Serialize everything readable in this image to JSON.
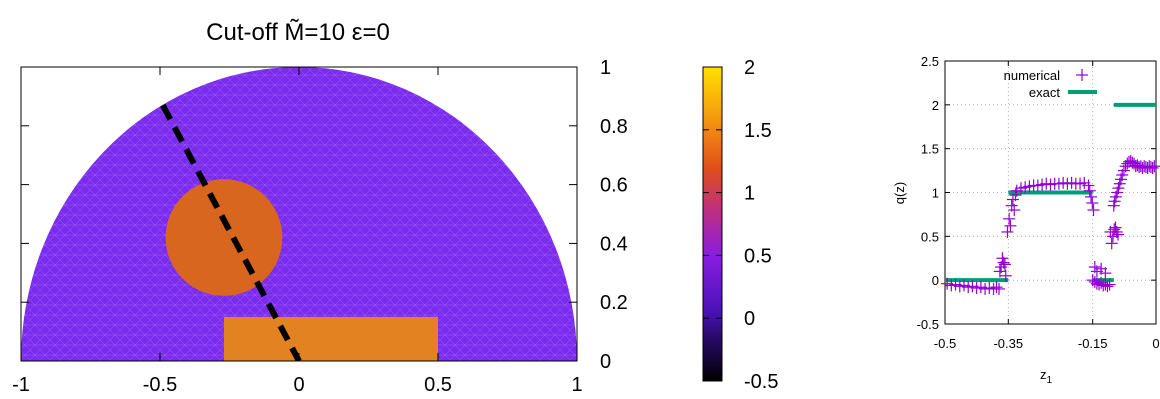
{
  "chart_data": [
    {
      "type": "heatmap",
      "title": "Cut-off M̃=10 ε=0",
      "xlim": [
        -1,
        1
      ],
      "ylim": [
        0,
        1
      ],
      "x_ticks": [
        "-1",
        "-0.5",
        "0",
        "0.5",
        "1"
      ],
      "y_ticks": [
        "0",
        "0.2",
        "0.4",
        "0.6",
        "0.8",
        "1"
      ],
      "colorbar": {
        "range": [
          -0.5,
          2
        ],
        "ticks": [
          "-0.5",
          "0",
          "0.5",
          "1",
          "1.5",
          "2"
        ],
        "colors": [
          "#000000",
          "#3a0a8c",
          "#8a1de0",
          "#c0307a",
          "#e0501a",
          "#f59a10",
          "#ffe000"
        ]
      },
      "regions": [
        {
          "shape": "half-disc",
          "center": [
            0,
            0
          ],
          "radius": 1,
          "value": 0.1,
          "color": "#7a2bee"
        },
        {
          "shape": "disc",
          "center": [
            -0.27,
            0.42
          ],
          "radius": 0.21,
          "value": 1.3,
          "color": "#d8661e"
        },
        {
          "shape": "rect",
          "x": [
            -0.27,
            0.5
          ],
          "y": [
            0,
            0.15
          ],
          "value": 1.4,
          "color": "#e28220"
        }
      ],
      "cut_line": {
        "from": [
          -0.49,
          0.87
        ],
        "to": [
          0,
          0
        ],
        "style": "dashed",
        "color": "#000000"
      }
    },
    {
      "type": "scatter",
      "xlabel": "z",
      "xlabel_sub": "1",
      "ylabel": "q(z)",
      "xlim": [
        -0.5,
        0
      ],
      "ylim": [
        -0.5,
        2.5
      ],
      "x_ticks": [
        "-0.5",
        "-0.35",
        "-0.15",
        "0"
      ],
      "x_tick_values": [
        -0.5,
        -0.35,
        -0.15,
        0
      ],
      "y_ticks": [
        "-0.5",
        "0",
        "0.5",
        "1",
        "1.5",
        "2",
        "2.5"
      ],
      "y_tick_values": [
        -0.5,
        0,
        0.5,
        1,
        1.5,
        2,
        2.5
      ],
      "legend": {
        "position": "top-left",
        "entries": [
          "numerical",
          "exact"
        ]
      },
      "series": [
        {
          "name": "numerical",
          "marker": "plus",
          "color": "#9400d3",
          "points": [
            [
              -0.495,
              -0.04
            ],
            [
              -0.485,
              -0.06
            ],
            [
              -0.475,
              -0.05
            ],
            [
              -0.465,
              -0.07
            ],
            [
              -0.455,
              -0.06
            ],
            [
              -0.445,
              -0.08
            ],
            [
              -0.435,
              -0.07
            ],
            [
              -0.425,
              -0.09
            ],
            [
              -0.415,
              -0.08
            ],
            [
              -0.405,
              -0.1
            ],
            [
              -0.395,
              -0.09
            ],
            [
              -0.385,
              -0.1
            ],
            [
              -0.378,
              -0.08
            ],
            [
              -0.372,
              -0.1
            ],
            [
              -0.37,
              0.1
            ],
            [
              -0.367,
              0.15
            ],
            [
              -0.364,
              0.25
            ],
            [
              -0.361,
              0.2
            ],
            [
              -0.358,
              0.18
            ],
            [
              -0.356,
              0.05
            ],
            [
              -0.352,
              0.55
            ],
            [
              -0.348,
              0.7
            ],
            [
              -0.345,
              0.62
            ],
            [
              -0.342,
              0.85
            ],
            [
              -0.339,
              0.92
            ],
            [
              -0.336,
              0.8
            ],
            [
              -0.333,
              0.97
            ],
            [
              -0.33,
              1.02
            ],
            [
              -0.32,
              1.05
            ],
            [
              -0.31,
              1.06
            ],
            [
              -0.3,
              1.07
            ],
            [
              -0.29,
              1.08
            ],
            [
              -0.28,
              1.08
            ],
            [
              -0.27,
              1.09
            ],
            [
              -0.26,
              1.1
            ],
            [
              -0.25,
              1.09
            ],
            [
              -0.24,
              1.1
            ],
            [
              -0.23,
              1.1
            ],
            [
              -0.22,
              1.11
            ],
            [
              -0.21,
              1.1
            ],
            [
              -0.2,
              1.11
            ],
            [
              -0.19,
              1.1
            ],
            [
              -0.18,
              1.1
            ],
            [
              -0.17,
              1.11
            ],
            [
              -0.16,
              1.08
            ],
            [
              -0.157,
              1.02
            ],
            [
              -0.154,
              0.95
            ],
            [
              -0.151,
              0.88
            ],
            [
              -0.148,
              0.8
            ],
            [
              -0.15,
              0.0
            ],
            [
              -0.145,
              -0.02
            ],
            [
              -0.14,
              -0.04
            ],
            [
              -0.135,
              -0.05
            ],
            [
              -0.13,
              -0.03
            ],
            [
              -0.125,
              -0.06
            ],
            [
              -0.12,
              -0.05
            ],
            [
              -0.115,
              -0.07
            ],
            [
              -0.11,
              -0.05
            ],
            [
              -0.14,
              0.1
            ],
            [
              -0.13,
              0.13
            ],
            [
              -0.12,
              0.08
            ],
            [
              -0.145,
              0.15
            ],
            [
              -0.108,
              0.55
            ],
            [
              -0.105,
              0.42
            ],
            [
              -0.102,
              0.5
            ],
            [
              -0.099,
              0.58
            ],
            [
              -0.096,
              0.6
            ],
            [
              -0.093,
              0.55
            ],
            [
              -0.09,
              0.52
            ],
            [
              -0.1,
              0.85
            ],
            [
              -0.098,
              0.9
            ],
            [
              -0.095,
              0.95
            ],
            [
              -0.092,
              1.0
            ],
            [
              -0.089,
              1.05
            ],
            [
              -0.086,
              1.1
            ],
            [
              -0.083,
              1.15
            ],
            [
              -0.08,
              1.2
            ],
            [
              -0.076,
              1.25
            ],
            [
              -0.072,
              1.3
            ],
            [
              -0.068,
              1.33
            ],
            [
              -0.064,
              1.35
            ],
            [
              -0.06,
              1.36
            ],
            [
              -0.056,
              1.34
            ],
            [
              -0.052,
              1.33
            ],
            [
              -0.048,
              1.3
            ],
            [
              -0.044,
              1.31
            ],
            [
              -0.04,
              1.29
            ],
            [
              -0.036,
              1.3
            ],
            [
              -0.032,
              1.28
            ],
            [
              -0.028,
              1.3
            ],
            [
              -0.024,
              1.29
            ],
            [
              -0.02,
              1.28
            ],
            [
              -0.016,
              1.3
            ],
            [
              -0.012,
              1.29
            ],
            [
              -0.008,
              1.28
            ],
            [
              -0.004,
              1.3
            ]
          ]
        },
        {
          "name": "exact",
          "marker": "thick-line",
          "color": "#009e73",
          "segments": [
            [
              [
                -0.5,
                0
              ],
              [
                -0.35,
                0
              ]
            ],
            [
              [
                -0.35,
                1
              ],
              [
                -0.15,
                1
              ]
            ],
            [
              [
                -0.15,
                0
              ],
              [
                -0.1,
                0
              ]
            ],
            [
              [
                -0.1,
                2
              ],
              [
                0,
                2
              ]
            ]
          ]
        }
      ]
    }
  ]
}
